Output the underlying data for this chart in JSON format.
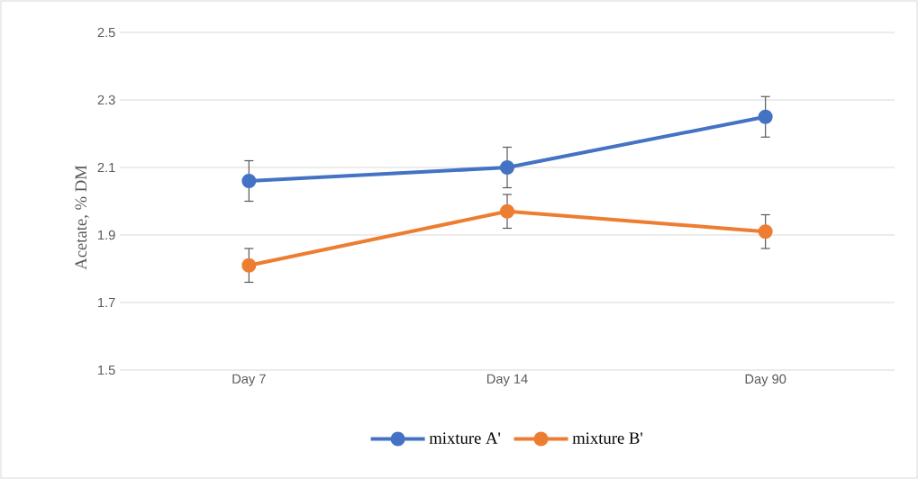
{
  "chart_data": {
    "type": "line",
    "ylabel": "Acetate, % DM",
    "categories": [
      "Day 7",
      "Day 14",
      "Day 90"
    ],
    "series": [
      {
        "name": "mixture A'",
        "color": "#4472c4",
        "values": [
          2.06,
          2.1,
          2.25
        ],
        "errors": [
          0.06,
          0.06,
          0.06
        ]
      },
      {
        "name": "mixture B'",
        "color": "#ed7d31",
        "values": [
          1.81,
          1.97,
          1.91
        ],
        "errors": [
          0.05,
          0.05,
          0.05
        ]
      }
    ],
    "ylim": [
      1.5,
      2.5
    ],
    "yticks": [
      1.5,
      1.7,
      1.9,
      2.1,
      2.3,
      2.5
    ],
    "grid": "y",
    "legend": "bottom",
    "marker": "circle",
    "line_style": "solid"
  }
}
